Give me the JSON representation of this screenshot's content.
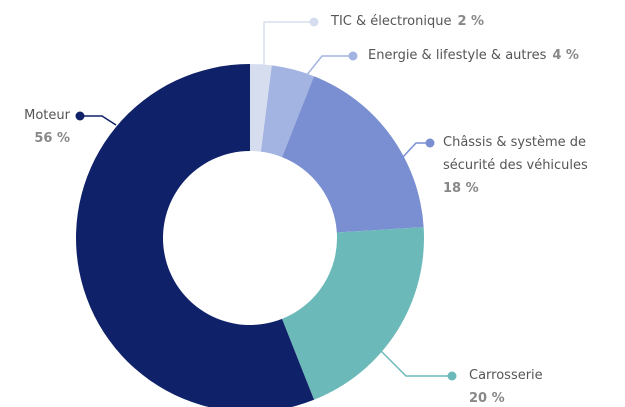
{
  "chart_data": {
    "type": "donut",
    "categories": [
      "TIC & électronique",
      "Energie & lifestyle & autres",
      "Châssis & système de sécurité des véhicules",
      "Carrosserie",
      "Moteur"
    ],
    "values": [
      2,
      4,
      18,
      20,
      56
    ],
    "value_labels": [
      "2 %",
      "4 %",
      "18 %",
      "20 %",
      "56 %"
    ],
    "colors": [
      "#d6ddee",
      "#a4b4e2",
      "#7a8fd1",
      "#6cb9b9",
      "#0f2168"
    ]
  }
}
